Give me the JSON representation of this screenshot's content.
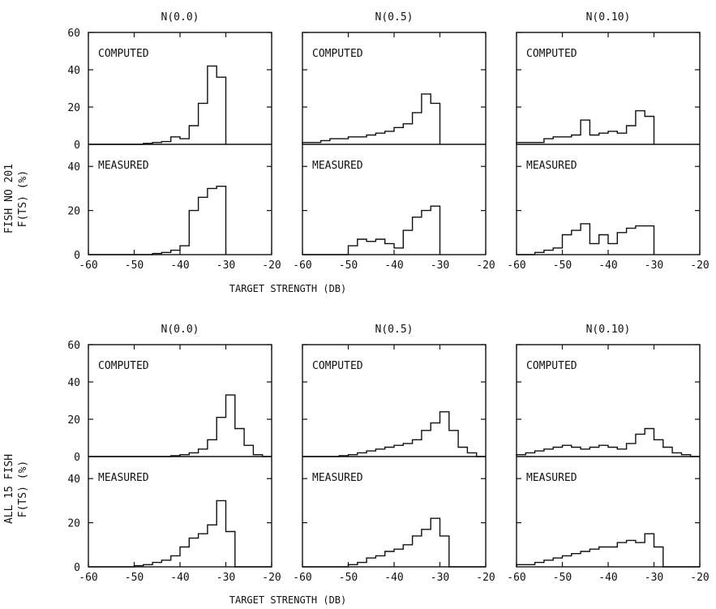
{
  "figure": {
    "groups": [
      {
        "ylabel_lines": [
          "FISH NO 201",
          "F(TS)  (%)"
        ],
        "xlabel": "TARGET STRENGTH (DB)"
      },
      {
        "ylabel_lines": [
          "ALL 15 FISH",
          "F(TS)  (%)"
        ],
        "xlabel": "TARGET STRENGTH (DB)"
      }
    ]
  },
  "chart_data": [
    {
      "type": "histogram",
      "group": 0,
      "title": "N(0.0)",
      "computed_label": "COMPUTED",
      "measured_label": "MEASURED",
      "x_ticks": [
        "-60",
        "-50",
        "-40",
        "-30",
        "-20"
      ],
      "y_ticks_top": [
        "0",
        "20",
        "40",
        "60"
      ],
      "y_ticks_bottom": [
        "0",
        "20",
        "40"
      ],
      "xlim": [
        -60,
        -20
      ],
      "ylim_top": [
        0,
        60
      ],
      "ylim_bottom": [
        0,
        50
      ],
      "bin_edges": [
        -60,
        -58,
        -56,
        -54,
        -52,
        -50,
        -48,
        -46,
        -44,
        -42,
        -40,
        -38,
        -36,
        -34,
        -32,
        -30
      ],
      "computed": [
        0,
        0,
        0,
        0,
        0,
        0,
        0.5,
        1,
        1.5,
        4,
        3,
        10,
        22,
        42,
        36
      ],
      "measured": [
        0,
        0,
        0,
        0,
        0,
        0,
        0,
        0.5,
        1,
        2,
        4,
        20,
        26,
        30,
        31
      ]
    },
    {
      "type": "histogram",
      "group": 0,
      "title": "N(0.5)",
      "computed_label": "COMPUTED",
      "measured_label": "MEASURED",
      "x_ticks": [
        "-60",
        "-50",
        "-40",
        "-30",
        "-20"
      ],
      "xlim": [
        -60,
        -20
      ],
      "ylim_top": [
        0,
        60
      ],
      "ylim_bottom": [
        0,
        50
      ],
      "bin_edges": [
        -60,
        -58,
        -56,
        -54,
        -52,
        -50,
        -48,
        -46,
        -44,
        -42,
        -40,
        -38,
        -36,
        -34,
        -32,
        -30
      ],
      "computed": [
        1,
        1,
        2,
        3,
        3,
        4,
        4,
        5,
        6,
        7,
        9,
        11,
        17,
        27,
        22
      ],
      "measured": [
        0,
        0,
        0,
        0,
        0,
        4,
        7,
        6,
        7,
        5,
        3,
        11,
        17,
        20,
        22
      ]
    },
    {
      "type": "histogram",
      "group": 0,
      "title": "N(0.10)",
      "computed_label": "COMPUTED",
      "measured_label": "MEASURED",
      "x_ticks": [
        "-60",
        "-50",
        "-40",
        "-30",
        "-20"
      ],
      "xlim": [
        -60,
        -20
      ],
      "ylim_top": [
        0,
        60
      ],
      "ylim_bottom": [
        0,
        50
      ],
      "bin_edges": [
        -60,
        -58,
        -56,
        -54,
        -52,
        -50,
        -48,
        -46,
        -44,
        -42,
        -40,
        -38,
        -36,
        -34,
        -32,
        -30
      ],
      "computed": [
        1,
        1,
        1,
        3,
        4,
        4,
        5,
        13,
        5,
        6,
        7,
        6,
        10,
        18,
        15
      ],
      "measured": [
        0,
        0,
        1,
        2,
        3,
        9,
        11,
        14,
        5,
        9,
        5,
        10,
        12,
        13,
        13
      ]
    },
    {
      "type": "histogram",
      "group": 1,
      "title": "N(0.0)",
      "computed_label": "COMPUTED",
      "measured_label": "MEASURED",
      "x_ticks": [
        "-60",
        "-50",
        "-40",
        "-30",
        "-20"
      ],
      "y_ticks_top": [
        "0",
        "20",
        "40",
        "60"
      ],
      "y_ticks_bottom": [
        "0",
        "20",
        "40"
      ],
      "xlim": [
        -60,
        -20
      ],
      "ylim_top": [
        0,
        60
      ],
      "ylim_bottom": [
        0,
        50
      ],
      "bin_edges": [
        -60,
        -58,
        -56,
        -54,
        -52,
        -50,
        -48,
        -46,
        -44,
        -42,
        -40,
        -38,
        -36,
        -34,
        -32,
        -30,
        -28,
        -26,
        -24,
        -22,
        -20
      ],
      "computed": [
        0,
        0,
        0,
        0,
        0,
        0,
        0,
        0,
        0,
        0.5,
        1,
        2,
        4,
        9,
        21,
        33,
        15,
        6,
        1,
        0
      ],
      "measured": [
        0,
        0,
        0,
        0,
        0,
        0.5,
        1,
        2,
        3,
        5,
        9,
        13,
        15,
        19,
        30,
        16,
        0,
        0,
        0,
        0
      ]
    },
    {
      "type": "histogram",
      "group": 1,
      "title": "N(0.5)",
      "computed_label": "COMPUTED",
      "measured_label": "MEASURED",
      "x_ticks": [
        "-60",
        "-50",
        "-40",
        "-30",
        "-20"
      ],
      "xlim": [
        -60,
        -20
      ],
      "ylim_top": [
        0,
        60
      ],
      "ylim_bottom": [
        0,
        50
      ],
      "bin_edges": [
        -60,
        -58,
        -56,
        -54,
        -52,
        -50,
        -48,
        -46,
        -44,
        -42,
        -40,
        -38,
        -36,
        -34,
        -32,
        -30,
        -28,
        -26,
        -24,
        -22,
        -20
      ],
      "computed": [
        0,
        0,
        0,
        0,
        0.5,
        1,
        2,
        3,
        4,
        5,
        6,
        7,
        9,
        14,
        18,
        24,
        14,
        5,
        2,
        0
      ],
      "measured": [
        0,
        0,
        0,
        0,
        0,
        1,
        2,
        4,
        5,
        7,
        8,
        10,
        14,
        17,
        22,
        14,
        0,
        0,
        0,
        0
      ]
    },
    {
      "type": "histogram",
      "group": 1,
      "title": "N(0.10)",
      "computed_label": "COMPUTED",
      "measured_label": "MEASURED",
      "x_ticks": [
        "-60",
        "-50",
        "-40",
        "-30",
        "-20"
      ],
      "xlim": [
        -60,
        -20
      ],
      "ylim_top": [
        0,
        60
      ],
      "ylim_bottom": [
        0,
        50
      ],
      "bin_edges": [
        -60,
        -58,
        -56,
        -54,
        -52,
        -50,
        -48,
        -46,
        -44,
        -42,
        -40,
        -38,
        -36,
        -34,
        -32,
        -30,
        -28,
        -26,
        -24,
        -22,
        -20
      ],
      "computed": [
        1,
        2,
        3,
        4,
        5,
        6,
        5,
        4,
        5,
        6,
        5,
        4,
        7,
        12,
        15,
        9,
        5,
        2,
        1,
        0
      ],
      "measured": [
        1,
        1,
        2,
        3,
        4,
        5,
        6,
        7,
        8,
        9,
        9,
        11,
        12,
        11,
        15,
        9,
        0,
        0,
        0,
        0
      ]
    }
  ]
}
